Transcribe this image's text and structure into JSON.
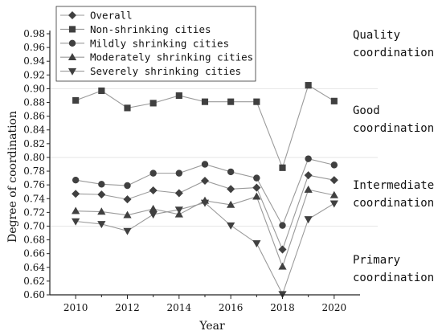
{
  "chart_data": {
    "type": "line",
    "xlabel": "Year",
    "ylabel": "Degree of coordination",
    "x": [
      2010,
      2011,
      2012,
      2013,
      2014,
      2015,
      2016,
      2017,
      2018,
      2019,
      2020
    ],
    "xlim": [
      2009,
      2021
    ],
    "xticks": [
      "2010",
      "2012",
      "2014",
      "2016",
      "2018",
      "2020"
    ],
    "ylim": [
      0.6,
      0.98
    ],
    "yticks": [
      "0.60",
      "0.62",
      "0.64",
      "0.66",
      "0.68",
      "0.70",
      "0.72",
      "0.74",
      "0.76",
      "0.78",
      "0.80",
      "0.82",
      "0.84",
      "0.86",
      "0.88",
      "0.90",
      "0.92",
      "0.94",
      "0.96",
      "0.98"
    ],
    "legend_position": "top-left",
    "line_color": "#9a9a9a",
    "marker_color": "#404040",
    "band_line_color": "#e6e6e6",
    "band_lines": [
      0.7,
      0.8,
      0.9
    ],
    "series": [
      {
        "name": "Overall",
        "marker": "diamond",
        "values": [
          0.747,
          0.746,
          0.739,
          0.752,
          0.748,
          0.766,
          0.754,
          0.756,
          0.666,
          0.774,
          0.767
        ]
      },
      {
        "name": "Non-shrinking cities",
        "marker": "square",
        "values": [
          0.883,
          0.897,
          0.872,
          0.879,
          0.89,
          0.881,
          0.881,
          0.881,
          0.785,
          0.905,
          0.882
        ]
      },
      {
        "name": "Mildly shrinking cities",
        "marker": "circle",
        "values": [
          0.767,
          0.761,
          0.759,
          0.777,
          0.777,
          0.79,
          0.779,
          0.77,
          0.701,
          0.798,
          0.789
        ]
      },
      {
        "name": "Moderately shrinking cities",
        "marker": "triangle-up",
        "values": [
          0.722,
          0.721,
          0.716,
          0.725,
          0.717,
          0.737,
          0.731,
          0.743,
          0.641,
          0.753,
          0.745
        ]
      },
      {
        "name": "Severely shrinking cities",
        "marker": "triangle-down",
        "values": [
          0.707,
          0.703,
          0.693,
          0.717,
          0.724,
          0.734,
          0.701,
          0.675,
          0.601,
          0.71,
          0.733
        ]
      }
    ],
    "annotations": [
      {
        "lines": [
          "Quality",
          "coordination"
        ]
      },
      {
        "lines": [
          "Good",
          "coordination"
        ]
      },
      {
        "lines": [
          "Intermediate",
          "coordination"
        ]
      },
      {
        "lines": [
          "Primary",
          "coordination"
        ]
      }
    ]
  }
}
